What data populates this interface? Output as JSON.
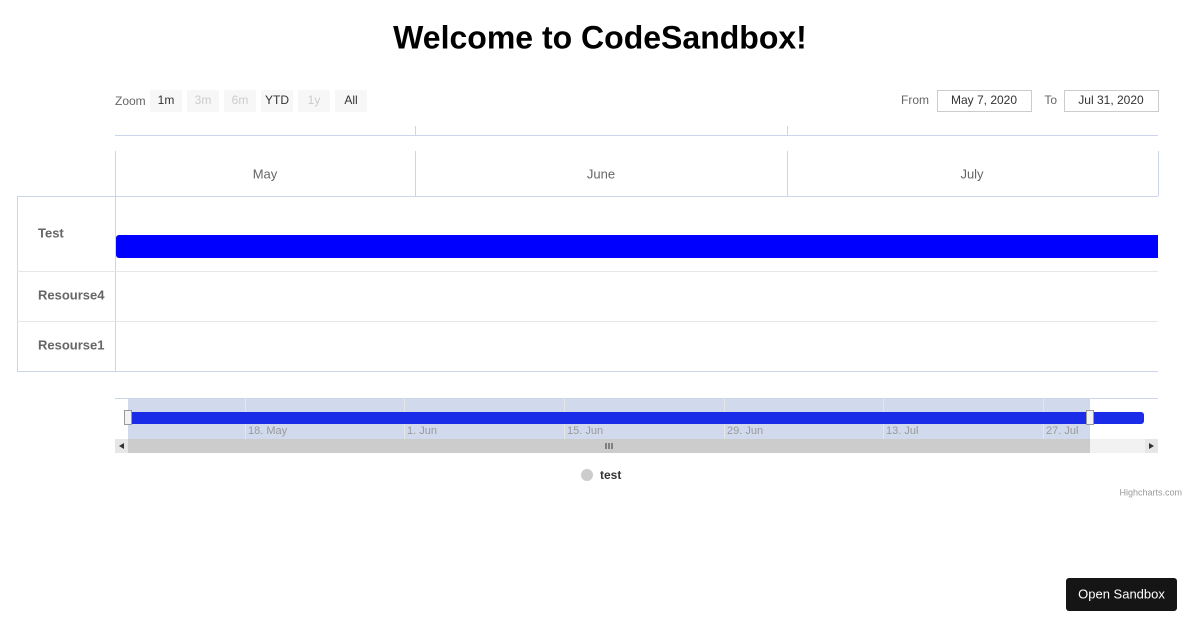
{
  "header": {
    "title": "Welcome to CodeSandbox!"
  },
  "range_selector": {
    "zoom_label": "Zoom",
    "buttons": [
      "1m",
      "3m",
      "6m",
      "YTD",
      "1y",
      "All"
    ],
    "disabled": [
      false,
      true,
      true,
      false,
      true,
      false
    ],
    "from_label": "From",
    "from_value": "May 7, 2020",
    "to_label": "To",
    "to_value": "Jul 31, 2020"
  },
  "gantt": {
    "months": [
      "May",
      "June",
      "July"
    ],
    "rows": [
      "Test",
      "Resourse4",
      "Resourse1"
    ]
  },
  "navigator": {
    "labels": [
      "18. May",
      "1. Jun",
      "15. Jun",
      "29. Jun",
      "13. Jul",
      "27. Jul"
    ]
  },
  "legend": {
    "items": [
      "test"
    ]
  },
  "credits": "Highcharts.com",
  "open_button": "Open Sandbox"
}
